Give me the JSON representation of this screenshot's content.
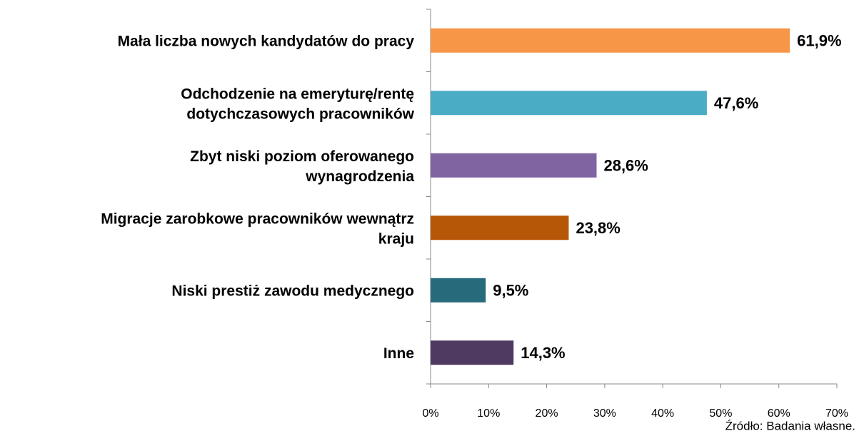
{
  "chart_data": {
    "type": "bar",
    "orientation": "horizontal",
    "categories": [
      "Mała liczba nowych kandydatów do pracy",
      "Odchodzenie na emeryturę/rentę\ndotychczasowych pracowników",
      "Zbyt niski poziom oferowanego\nwynagrodzenia",
      "Migracje zarobkowe pracowników wewnątrz\nkraju",
      "Niski prestiż zawodu medycznego",
      "Inne"
    ],
    "values": [
      61.9,
      47.6,
      28.6,
      23.8,
      9.5,
      14.3
    ],
    "value_labels": [
      "61,9%",
      "47,6%",
      "28,6%",
      "23,8%",
      "9,5%",
      "14,3%"
    ],
    "colors": [
      "#f79646",
      "#4bacc6",
      "#8064a2",
      "#b65708",
      "#276a7c",
      "#4f3b62"
    ],
    "xlim": [
      0,
      70
    ],
    "xticks": [
      {
        "value": 0,
        "label": "0%"
      },
      {
        "value": 10,
        "label": "10%"
      },
      {
        "value": 20,
        "label": "20%"
      },
      {
        "value": 30,
        "label": "30%"
      },
      {
        "value": 40,
        "label": "40%"
      },
      {
        "value": 50,
        "label": "50%"
      },
      {
        "value": 60,
        "label": "60%"
      },
      {
        "value": 70,
        "label": "70%"
      }
    ],
    "grid": false,
    "source": "Źródło: Badania własne."
  }
}
